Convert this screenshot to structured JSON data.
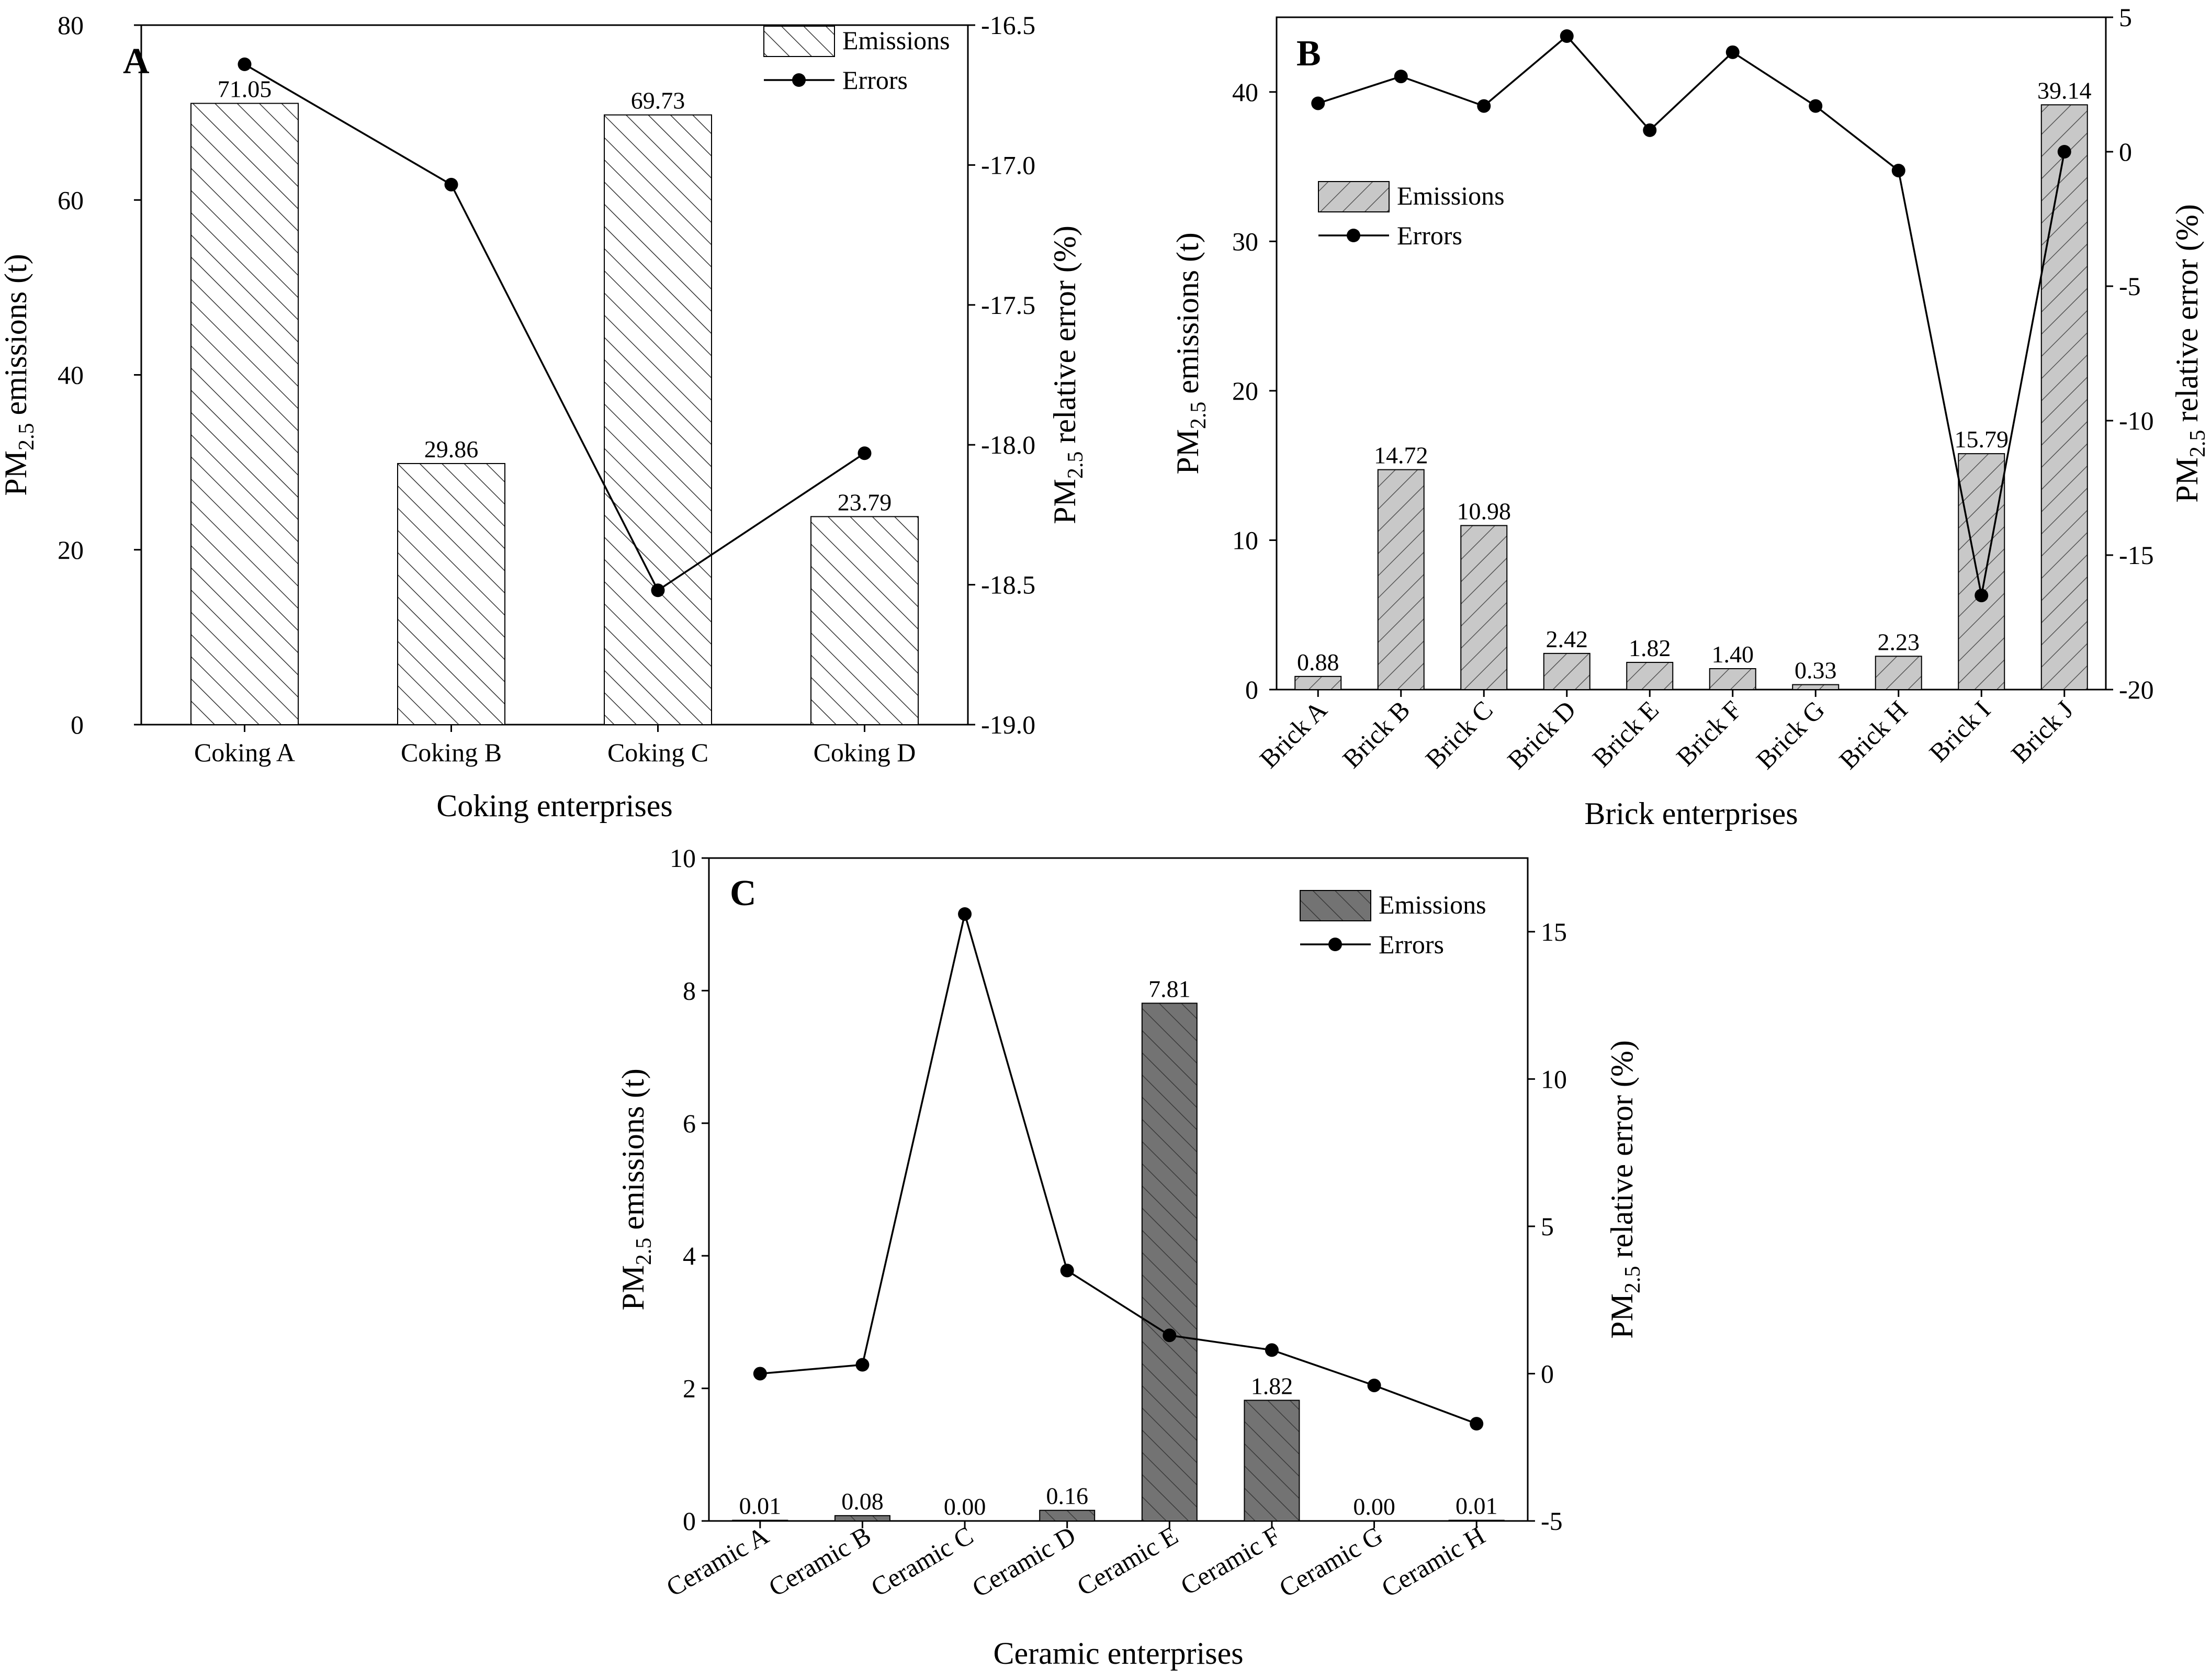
{
  "chart_data": [
    {
      "id": "A",
      "panel_label": "A",
      "type": "bar+line",
      "categories": [
        "Coking A",
        "Coking B",
        "Coking C",
        "Coking D"
      ],
      "series": [
        {
          "name": "Emissions",
          "type": "bar",
          "axis": "left",
          "values": [
            71.05,
            29.86,
            69.73,
            23.79
          ],
          "labels": [
            "71.05",
            "29.86",
            "69.73",
            "23.79"
          ],
          "fill": "#ffffff",
          "pattern": "hatch-light"
        },
        {
          "name": "Errors",
          "type": "line",
          "axis": "right",
          "values": [
            -16.64,
            -17.07,
            -18.52,
            -18.03
          ]
        }
      ],
      "xlabel": "Coking enterprises",
      "ylabel_left": {
        "base": "PM",
        "sub": "2.5",
        "rest": " emissions (t)"
      },
      "ylabel_right": {
        "base": "PM",
        "sub": "2.5",
        "rest": " relative error (%)"
      },
      "ylim_left": [
        0,
        80
      ],
      "yticks_left": [
        0,
        20,
        40,
        60,
        80
      ],
      "ylim_right": [
        -19.0,
        -16.5
      ],
      "yticks_right": [
        -19.0,
        -18.5,
        -18.0,
        -17.5,
        -17.0,
        -16.5
      ],
      "yticklabels_right": [
        "-19.0",
        "-18.5",
        "-18.0",
        "-17.5",
        "-17.0",
        "-16.5"
      ],
      "legend": [
        "Emissions",
        "Errors"
      ],
      "legend_position": "top-right",
      "xtick_rotation": 0
    },
    {
      "id": "B",
      "panel_label": "B",
      "type": "bar+line",
      "categories": [
        "Brick A",
        "Brick B",
        "Brick C",
        "Brick D",
        "Brick E",
        "Brick F",
        "Brick G",
        "Brick H",
        "Brick I",
        "Brick J"
      ],
      "series": [
        {
          "name": "Emissions",
          "type": "bar",
          "axis": "left",
          "values": [
            0.88,
            14.72,
            10.98,
            2.42,
            1.82,
            1.4,
            0.33,
            2.23,
            15.79,
            39.14
          ],
          "labels": [
            "0.88",
            "14.72",
            "10.98",
            "2.42",
            "1.82",
            "1.40",
            "0.33",
            "2.23",
            "15.79",
            "39.14"
          ],
          "fill": "#c8c8c8",
          "pattern": "hatch-back"
        },
        {
          "name": "Errors",
          "type": "line",
          "axis": "right",
          "values": [
            1.8,
            2.8,
            1.7,
            4.3,
            0.8,
            3.7,
            1.7,
            -0.7,
            -16.5,
            0.0
          ]
        }
      ],
      "xlabel": "Brick enterprises",
      "ylabel_left": {
        "base": "PM",
        "sub": "2.5",
        "rest": " emissions (t)"
      },
      "ylabel_right": {
        "base": "PM",
        "sub": "2.5",
        "rest": " relative error (%)"
      },
      "ylim_left": [
        0,
        45
      ],
      "yticks_left": [
        0,
        10,
        20,
        30,
        40
      ],
      "ylim_right": [
        -20,
        5
      ],
      "yticks_right": [
        -20,
        -15,
        -10,
        -5,
        0,
        5
      ],
      "yticklabels_right": [
        "-20",
        "-15",
        "-10",
        "-5",
        "0",
        "5"
      ],
      "legend": [
        "Emissions",
        "Errors"
      ],
      "legend_position": "upper-left",
      "xtick_rotation": -45
    },
    {
      "id": "C",
      "panel_label": "C",
      "type": "bar+line",
      "categories": [
        "Ceramic A",
        "Ceramic B",
        "Ceramic C",
        "Ceramic D",
        "Ceramic E",
        "Ceramic F",
        "Ceramic G",
        "Ceramic H"
      ],
      "series": [
        {
          "name": "Emissions",
          "type": "bar",
          "axis": "left",
          "values": [
            0.01,
            0.08,
            0.0,
            0.16,
            7.81,
            1.82,
            0.0,
            0.01
          ],
          "labels": [
            "0.01",
            "0.08",
            "0.00",
            "0.16",
            "7.81",
            "1.82",
            "0.00",
            "0.01"
          ],
          "fill": "#737373",
          "pattern": "hatch-dark"
        },
        {
          "name": "Errors",
          "type": "line",
          "axis": "right",
          "values": [
            0.0,
            0.3,
            15.6,
            3.5,
            1.3,
            0.8,
            -0.4,
            -1.7
          ]
        }
      ],
      "xlabel": "Ceramic enterprises",
      "ylabel_left": {
        "base": "PM",
        "sub": "2.5",
        "rest": " emissions (t)"
      },
      "ylabel_right": {
        "base": "PM",
        "sub": "2.5",
        "rest": " relative error (%)"
      },
      "ylim_left": [
        0,
        10
      ],
      "yticks_left": [
        0,
        2,
        4,
        6,
        8,
        10
      ],
      "ylim_right": [
        -5,
        17.5
      ],
      "yticks_right": [
        -5,
        0,
        5,
        10,
        15
      ],
      "yticklabels_right": [
        "-5",
        "0",
        "5",
        "10",
        "15"
      ],
      "legend": [
        "Emissions",
        "Errors"
      ],
      "legend_position": "top-right",
      "xtick_rotation": -30
    }
  ]
}
